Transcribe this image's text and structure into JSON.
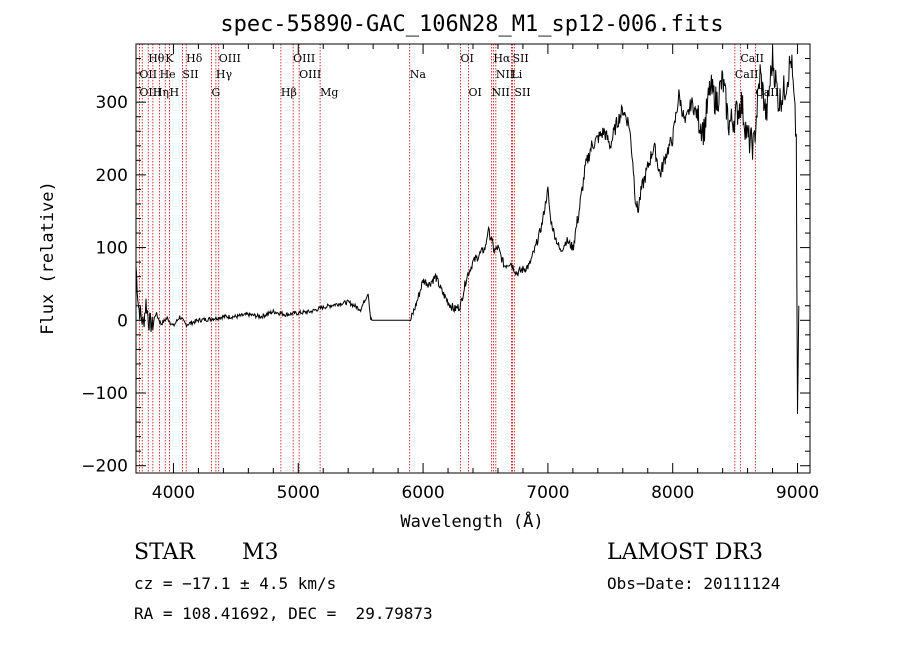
{
  "chart_data": {
    "type": "line",
    "title": "spec-55890-GAC_106N28_M1_sp12-006.fits",
    "xlabel": "Wavelength (Å)",
    "ylabel": "Flux (relative)",
    "xlim": [
      3700,
      9100
    ],
    "ylim": [
      -210,
      380
    ],
    "x_ticks": [
      4000,
      5000,
      6000,
      7000,
      8000,
      9000
    ],
    "y_ticks": [
      -200,
      -100,
      0,
      100,
      200,
      300
    ],
    "series": [
      {
        "name": "flux",
        "x": [
          3700,
          3720,
          3740,
          3760,
          3780,
          3800,
          3830,
          3860,
          3900,
          3950,
          4000,
          4050,
          4100,
          4200,
          4300,
          4400,
          4500,
          4600,
          4700,
          4800,
          4900,
          5000,
          5100,
          5200,
          5300,
          5400,
          5500,
          5560,
          5580,
          5590,
          5600,
          5700,
          5800,
          5900,
          5910,
          5950,
          6000,
          6050,
          6100,
          6150,
          6200,
          6250,
          6300,
          6330,
          6350,
          6400,
          6450,
          6500,
          6520,
          6550,
          6570,
          6600,
          6620,
          6650,
          6700,
          6750,
          6800,
          6850,
          6900,
          6950,
          7000,
          7020,
          7050,
          7100,
          7150,
          7200,
          7250,
          7300,
          7350,
          7400,
          7450,
          7500,
          7550,
          7600,
          7650,
          7680,
          7700,
          7720,
          7750,
          7800,
          7850,
          7900,
          7950,
          8000,
          8050,
          8100,
          8150,
          8200,
          8250,
          8300,
          8350,
          8400,
          8450,
          8500,
          8550,
          8600,
          8650,
          8700,
          8750,
          8800,
          8850,
          8900,
          8950,
          8990,
          9000,
          9010
        ],
        "y": [
          75,
          20,
          5,
          -5,
          25,
          0,
          -8,
          10,
          -5,
          3,
          -8,
          5,
          -6,
          0,
          2,
          5,
          5,
          8,
          5,
          12,
          8,
          10,
          12,
          18,
          22,
          25,
          15,
          38,
          2,
          0,
          0,
          0,
          0,
          0,
          5,
          25,
          55,
          50,
          60,
          40,
          25,
          15,
          20,
          45,
          60,
          80,
          90,
          100,
          125,
          110,
          95,
          100,
          90,
          75,
          80,
          65,
          70,
          75,
          100,
          130,
          180,
          140,
          120,
          95,
          110,
          100,
          150,
          210,
          240,
          250,
          260,
          240,
          270,
          290,
          270,
          220,
          170,
          150,
          180,
          210,
          240,
          200,
          230,
          250,
          310,
          270,
          300,
          280,
          260,
          320,
          300,
          330,
          270,
          280,
          300,
          250,
          240,
          340,
          280,
          360,
          300,
          320,
          360,
          250,
          -150,
          20
        ]
      }
    ],
    "emission_lines": [
      {
        "label": "Hδ",
        "x": 4102,
        "row": 1
      },
      {
        "label": "Hθ",
        "x": 3798,
        "row": 1
      },
      {
        "label": "K",
        "x": 3934,
        "row": 1
      },
      {
        "label": "OIII",
        "x": 4363,
        "row": 1
      },
      {
        "label": "OIII",
        "x": 4959,
        "row": 1
      },
      {
        "label": "OI",
        "x": 6300,
        "row": 1
      },
      {
        "label": "Hα",
        "x": 6563,
        "row": 1
      },
      {
        "label": "SII",
        "x": 6716,
        "row": 1
      },
      {
        "label": "CaII",
        "x": 8542,
        "row": 1
      },
      {
        "label": "OII",
        "x": 3727,
        "row": 2
      },
      {
        "label": "He",
        "x": 3889,
        "row": 2
      },
      {
        "label": "SII",
        "x": 4072,
        "row": 2
      },
      {
        "label": "Hγ",
        "x": 4340,
        "row": 2
      },
      {
        "label": "OIII",
        "x": 5007,
        "row": 2
      },
      {
        "label": "Na",
        "x": 5893,
        "row": 2
      },
      {
        "label": "NII",
        "x": 6583,
        "row": 2
      },
      {
        "label": "Li",
        "x": 6708,
        "row": 2
      },
      {
        "label": "CaII",
        "x": 8498,
        "row": 2
      },
      {
        "label": "OIII",
        "x": 3727,
        "row": 3
      },
      {
        "label": "Hη",
        "x": 3835,
        "row": 3
      },
      {
        "label": "H",
        "x": 3968,
        "row": 3
      },
      {
        "label": "G",
        "x": 4305,
        "row": 3
      },
      {
        "label": "Hβ",
        "x": 4861,
        "row": 3
      },
      {
        "label": "Mg",
        "x": 5175,
        "row": 3
      },
      {
        "label": "OI",
        "x": 6364,
        "row": 3
      },
      {
        "label": "NII",
        "x": 6548,
        "row": 3
      },
      {
        "label": "SII",
        "x": 6731,
        "row": 3
      },
      {
        "label": "CaII",
        "x": 8662,
        "row": 3
      }
    ],
    "line_markers_x": [
      3727,
      3750,
      3798,
      3835,
      3889,
      3934,
      3968,
      4072,
      4102,
      4305,
      4340,
      4363,
      4861,
      4959,
      5007,
      5175,
      5893,
      6300,
      6364,
      6548,
      6563,
      6583,
      6708,
      6716,
      6731,
      8498,
      8542,
      8662
    ],
    "colors": {
      "line": "#000000",
      "marker": "#cc0000"
    }
  },
  "info": {
    "object_type": "STAR",
    "subclass": "M3",
    "survey": "LAMOST DR3",
    "redshift": "cz = −17.1 ± 4.5 km/s",
    "obs_date": "Obs−Date: 20111124",
    "coords": "RA = 108.41692, DEC =  29.79873"
  }
}
